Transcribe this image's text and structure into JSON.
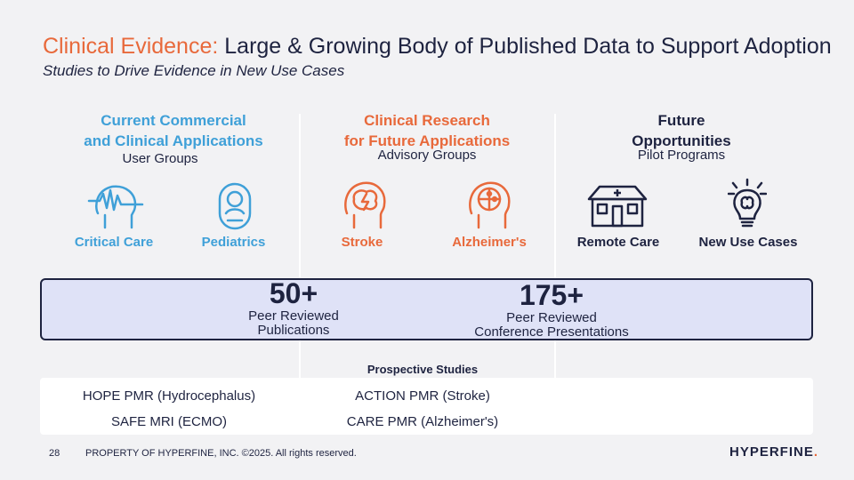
{
  "header": {
    "title_accent": "Clinical Evidence:",
    "title_rest": " Large & Growing Body of Published Data to Support Adoption",
    "subtitle": "Studies to Drive Evidence in New Use Cases"
  },
  "columns": [
    {
      "heading_line1": "Current Commercial",
      "heading_line2": "and Clinical Applications",
      "subheading": "User Groups"
    },
    {
      "heading_line1": "Clinical Research",
      "heading_line2": "for Future Applications",
      "subheading": "Advisory Groups"
    },
    {
      "heading_line1": "Future",
      "heading_line2": "Opportunities",
      "subheading": "Pilot Programs"
    }
  ],
  "categories": [
    {
      "label": "Critical Care",
      "icon": "head-brainwave-icon",
      "color": "#3fa0d8"
    },
    {
      "label": "Pediatrics",
      "icon": "infant-icon",
      "color": "#3fa0d8"
    },
    {
      "label": "Stroke",
      "icon": "head-brain-lightning-icon",
      "color": "#e8693b"
    },
    {
      "label": "Alzheimer's",
      "icon": "head-puzzle-icon",
      "color": "#e8693b"
    },
    {
      "label": "Remote Care",
      "icon": "house-icon",
      "color": "#1e2340"
    },
    {
      "label": "New Use Cases",
      "icon": "lightbulb-brain-icon",
      "color": "#1e2340"
    }
  ],
  "stats": [
    {
      "value": "50+",
      "label_line1": "Peer Reviewed",
      "label_line2": "Publications"
    },
    {
      "value": "175+",
      "label_line1": "Peer Reviewed",
      "label_line2": "Conference Presentations"
    }
  ],
  "prospective": {
    "heading": "Prospective Studies",
    "rows": [
      [
        "HOPE PMR (Hydrocephalus)",
        "ACTION PMR (Stroke)"
      ],
      [
        "SAFE MRI (ECMO)",
        "CARE PMR (Alzheimer's)"
      ]
    ]
  },
  "footer": {
    "page_number": "28",
    "copyright": "PROPERTY OF HYPERFINE, INC. ©2025. All rights reserved.",
    "logo_text": "HYPERFINE",
    "logo_dot": "."
  }
}
